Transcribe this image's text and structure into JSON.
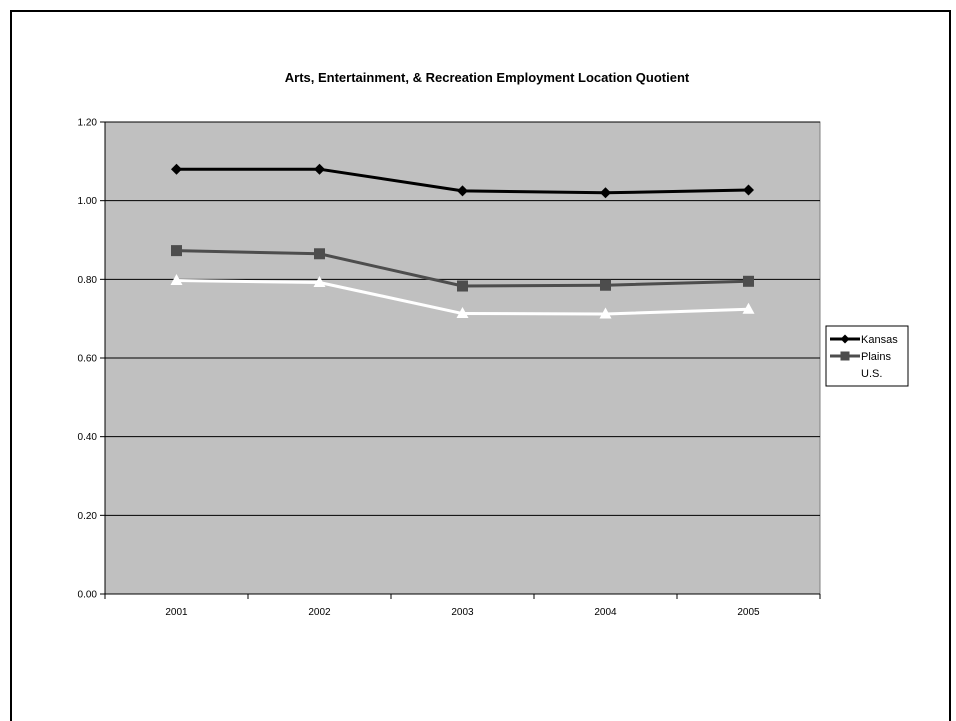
{
  "chart_data": {
    "type": "line",
    "title": "Arts, Entertainment, & Recreation Employment Location Quotient",
    "xlabel": "",
    "ylabel": "",
    "categories": [
      "2001",
      "2002",
      "2003",
      "2004",
      "2005"
    ],
    "ylim": [
      0,
      1.2
    ],
    "yticks": [
      "0.00",
      "0.20",
      "0.40",
      "0.60",
      "0.80",
      "1.00",
      "1.20"
    ],
    "grid": true,
    "legend": "right",
    "plot_background": "#c0c0c0",
    "series": [
      {
        "name": "Kansas",
        "values": [
          1.08,
          1.08,
          1.025,
          1.02,
          1.027
        ],
        "color": "#000000",
        "marker": "diamond"
      },
      {
        "name": "Plains",
        "values": [
          0.873,
          0.865,
          0.783,
          0.785,
          0.795
        ],
        "color": "#4d4d4d",
        "marker": "square"
      },
      {
        "name": "U.S.",
        "values": [
          0.797,
          0.792,
          0.713,
          0.712,
          0.724
        ],
        "color": "#ffffff",
        "marker": "triangle"
      }
    ]
  }
}
